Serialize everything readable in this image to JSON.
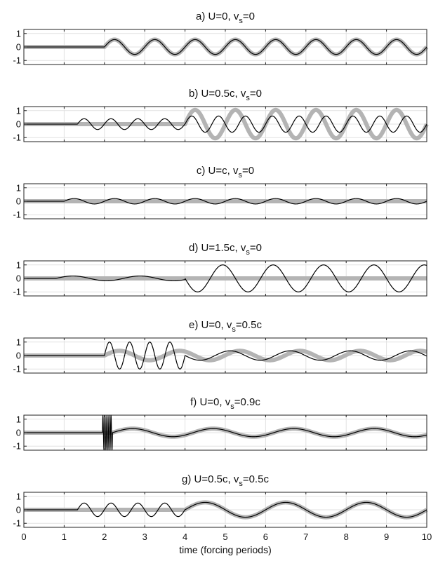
{
  "chart_data": {
    "type": "line",
    "xlabel": "time (forcing periods)",
    "xlim": [
      0,
      10
    ],
    "xticks": [
      0,
      1,
      2,
      3,
      4,
      5,
      6,
      7,
      8,
      9,
      10
    ],
    "ylim": [
      -1.3,
      1.3
    ],
    "yticks": [
      -1,
      0,
      1
    ],
    "grid": true,
    "colors": {
      "thick_series": "#b4b4b4",
      "thin_series": "#000000"
    },
    "panels": [
      {
        "title": "a) U=0, v_s=0",
        "title_main": "a) U=0, v",
        "title_sub": "s",
        "title_tail": "=0",
        "thick": [
          {
            "type": "zero",
            "t0": 0,
            "t1": 2
          },
          {
            "type": "sine",
            "t0": 2,
            "t1": 10,
            "A": 0.55,
            "f": 1,
            "phase": 0
          }
        ],
        "thin": [
          {
            "type": "zero",
            "t0": 0,
            "t1": 2
          },
          {
            "type": "sine",
            "t0": 2,
            "t1": 10,
            "A": 0.55,
            "f": 1,
            "phase": 0
          }
        ]
      },
      {
        "title": "b) U=0.5c, v_s=0",
        "title_main": "b) U=0.5c, v",
        "title_sub": "s",
        "title_tail": "=0",
        "thick": [
          {
            "type": "zero",
            "t0": 0,
            "t1": 4
          },
          {
            "type": "sine",
            "t0": 4,
            "t1": 10,
            "A": 1.05,
            "f": 1,
            "phase": 0
          }
        ],
        "thin": [
          {
            "type": "zero",
            "t0": 0,
            "t1": 1.33
          },
          {
            "type": "sine",
            "t0": 1.33,
            "t1": 4,
            "A": 0.4,
            "f": 1.5,
            "phase": 0
          },
          {
            "type": "sine",
            "t0": 4,
            "t1": 10,
            "A": 0.6,
            "f": 1.5,
            "phase": 0
          }
        ]
      },
      {
        "title": "c) U=c, v_s=0",
        "title_main": "c) U=c, v",
        "title_sub": "s",
        "title_tail": "=0",
        "thick": [
          {
            "type": "zero",
            "t0": 0,
            "t1": 10
          }
        ],
        "thin": [
          {
            "type": "zero",
            "t0": 0,
            "t1": 1
          },
          {
            "type": "sine",
            "t0": 1,
            "t1": 10,
            "A": 0.2,
            "f": 1,
            "phase": 0
          }
        ]
      },
      {
        "title": "d) U=1.5c, v_s=0",
        "title_main": "d) U=1.5c, v",
        "title_sub": "s",
        "title_tail": "=0",
        "thick": [
          {
            "type": "zero",
            "t0": 0,
            "t1": 10
          }
        ],
        "thin": [
          {
            "type": "zero",
            "t0": 0,
            "t1": 0.8
          },
          {
            "type": "sine",
            "t0": 0.8,
            "t1": 4,
            "A": 0.18,
            "f": 0.6,
            "phase": 0
          },
          {
            "type": "sine",
            "t0": 4,
            "t1": 10,
            "A": 1.0,
            "f": 0.8,
            "phase": 3.14159
          }
        ]
      },
      {
        "title": "e) U=0, v_s=0.5c",
        "title_main": "e) U=0, v",
        "title_sub": "s",
        "title_tail": "=0.5c",
        "thick": [
          {
            "type": "zero",
            "t0": 0,
            "t1": 2
          },
          {
            "type": "sine",
            "t0": 2,
            "t1": 10,
            "A": 0.35,
            "f": 0.67,
            "phase": 0
          }
        ],
        "thin": [
          {
            "type": "zero",
            "t0": 0,
            "t1": 2
          },
          {
            "type": "sine",
            "t0": 2,
            "t1": 4,
            "A": 1.0,
            "f": 2,
            "phase": 0
          },
          {
            "type": "sine",
            "t0": 4,
            "t1": 10,
            "A": 0.35,
            "f": 0.67,
            "phase": 3.14159
          }
        ]
      },
      {
        "title": "f) U=0, v_s=0.9c",
        "title_main": "f) U=0, v",
        "title_sub": "s",
        "title_tail": "=0.9c",
        "thick": [
          {
            "type": "zero",
            "t0": 0,
            "t1": 2.2
          },
          {
            "type": "sine",
            "t0": 2.2,
            "t1": 10,
            "A": 0.3,
            "f": 0.5,
            "phase": 0
          }
        ],
        "thin": [
          {
            "type": "zero",
            "t0": 0,
            "t1": 1.95
          },
          {
            "type": "sine",
            "t0": 1.95,
            "t1": 2.2,
            "A": 1.3,
            "f": 20,
            "phase": 0
          },
          {
            "type": "sine",
            "t0": 2.2,
            "t1": 10,
            "A": 0.3,
            "f": 0.5,
            "phase": 0
          }
        ]
      },
      {
        "title": "g) U=0.5c, v_s=0.5c",
        "title_main": "g) U=0.5c, v",
        "title_sub": "s",
        "title_tail": "=0.5c",
        "thick": [
          {
            "type": "zero",
            "t0": 0,
            "t1": 4
          },
          {
            "type": "sine",
            "t0": 4,
            "t1": 10,
            "A": 0.55,
            "f": 0.5,
            "phase": 0
          }
        ],
        "thin": [
          {
            "type": "zero",
            "t0": 0,
            "t1": 1.33
          },
          {
            "type": "sine",
            "t0": 1.33,
            "t1": 4,
            "A": 0.5,
            "f": 1.5,
            "phase": 0
          },
          {
            "type": "sine",
            "t0": 4,
            "t1": 10,
            "A": 0.55,
            "f": 0.5,
            "phase": 0
          }
        ]
      }
    ]
  }
}
